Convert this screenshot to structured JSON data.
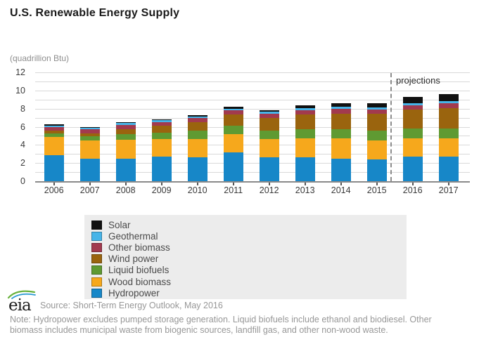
{
  "page": {
    "title": "U.S. Renewable Energy Supply",
    "units_label": "(quadrillion Btu)"
  },
  "chart_data": {
    "type": "bar",
    "stacked": true,
    "title": "U.S. Renewable Energy Supply",
    "ylabel": "(quadrillion Btu)",
    "xlabel": "",
    "ylim": [
      0,
      12
    ],
    "ytick_step": 2,
    "grid_step": 1,
    "grid": true,
    "legend_position": "bottom-left gray box",
    "categories": [
      "2006",
      "2007",
      "2008",
      "2009",
      "2010",
      "2011",
      "2012",
      "2013",
      "2014",
      "2015",
      "2016",
      "2017"
    ],
    "series": [
      {
        "name": "Hydropower",
        "color": "#1787c8",
        "values": [
          2.85,
          2.45,
          2.5,
          2.7,
          2.6,
          3.15,
          2.65,
          2.6,
          2.48,
          2.4,
          2.7,
          2.68
        ]
      },
      {
        "name": "Wood biomass",
        "color": "#f6a81c",
        "values": [
          2.05,
          2.05,
          2.05,
          1.95,
          2.05,
          2.0,
          2.0,
          2.15,
          2.22,
          2.1,
          2.05,
          2.05
        ]
      },
      {
        "name": "Liquid biofuels",
        "color": "#5f9a32",
        "values": [
          0.35,
          0.45,
          0.62,
          0.72,
          0.9,
          0.98,
          0.92,
          1.0,
          1.02,
          1.05,
          1.05,
          1.05
        ]
      },
      {
        "name": "Wind power",
        "color": "#9a640e",
        "values": [
          0.3,
          0.35,
          0.58,
          0.72,
          0.95,
          1.22,
          1.4,
          1.62,
          1.75,
          1.85,
          2.1,
          2.3
        ]
      },
      {
        "name": "Other biomass",
        "color": "#a23a4e",
        "values": [
          0.4,
          0.4,
          0.45,
          0.45,
          0.45,
          0.45,
          0.45,
          0.47,
          0.48,
          0.48,
          0.48,
          0.48
        ]
      },
      {
        "name": "Geothermal",
        "color": "#47b4e8",
        "values": [
          0.2,
          0.2,
          0.2,
          0.2,
          0.21,
          0.21,
          0.21,
          0.21,
          0.22,
          0.22,
          0.23,
          0.24
        ]
      },
      {
        "name": "Solar",
        "color": "#111111",
        "values": [
          0.1,
          0.1,
          0.1,
          0.1,
          0.15,
          0.17,
          0.22,
          0.32,
          0.4,
          0.5,
          0.65,
          0.78
        ]
      }
    ],
    "projections": {
      "label": "projections",
      "divider_after_category": "2015",
      "line_style": "dashed"
    }
  },
  "footer": {
    "logo_text": "eia",
    "source": "Source: Short-Term Energy Outlook, May 2016",
    "note_line1": "Note: Hydropower excludes pumped storage generation. Liquid biofuels include ethanol and biodiesel. Other",
    "note_line2": "biomass includes municipal waste from biogenic sources, landfill gas, and other non-wood waste."
  }
}
